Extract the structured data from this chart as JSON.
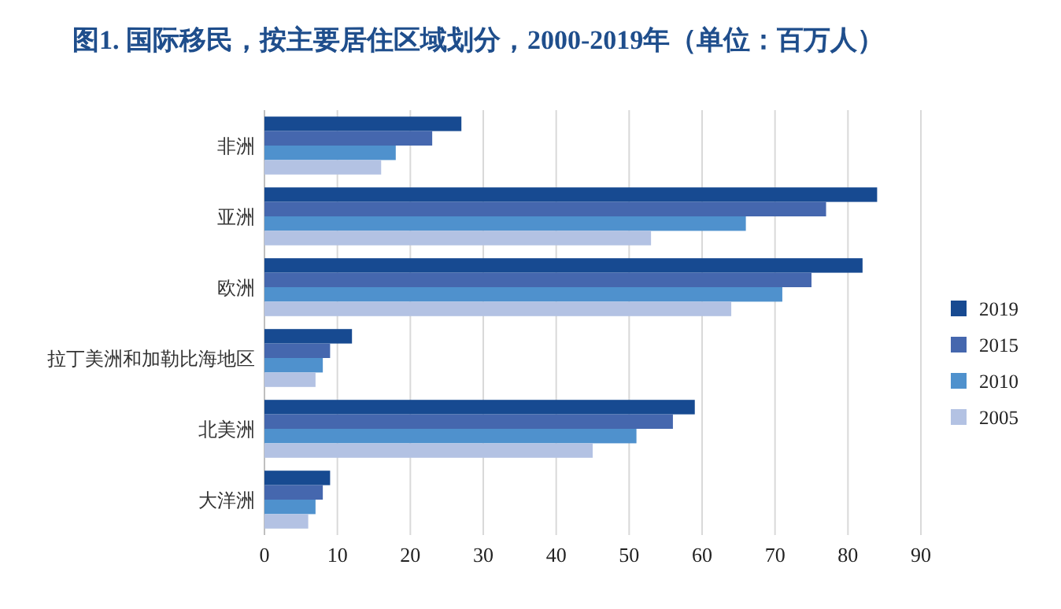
{
  "chart_data": {
    "type": "bar",
    "orientation": "horizontal",
    "title": "图1.  国际移民，按主要居住区域划分，2000-2019年（单位：百万人）",
    "categories": [
      "非洲",
      "亚洲",
      "欧洲",
      "拉丁美洲和加勒比海地区",
      "北美洲",
      "大洋洲"
    ],
    "series": [
      {
        "name": "2019",
        "color": "#174a91",
        "values": [
          27,
          84,
          82,
          12,
          59,
          9
        ]
      },
      {
        "name": "2015",
        "color": "#4567ae",
        "values": [
          23,
          77,
          75,
          9,
          56,
          8
        ]
      },
      {
        "name": "2010",
        "color": "#4f91cd",
        "values": [
          18,
          66,
          71,
          8,
          51,
          7
        ]
      },
      {
        "name": "2005",
        "color": "#b3c2e3",
        "values": [
          16,
          53,
          64,
          7,
          45,
          6
        ]
      }
    ],
    "xlim": [
      0,
      90
    ],
    "xticks": [
      0,
      10,
      20,
      30,
      40,
      50,
      60,
      70,
      80,
      90
    ],
    "grid": "x",
    "legend": "right"
  }
}
